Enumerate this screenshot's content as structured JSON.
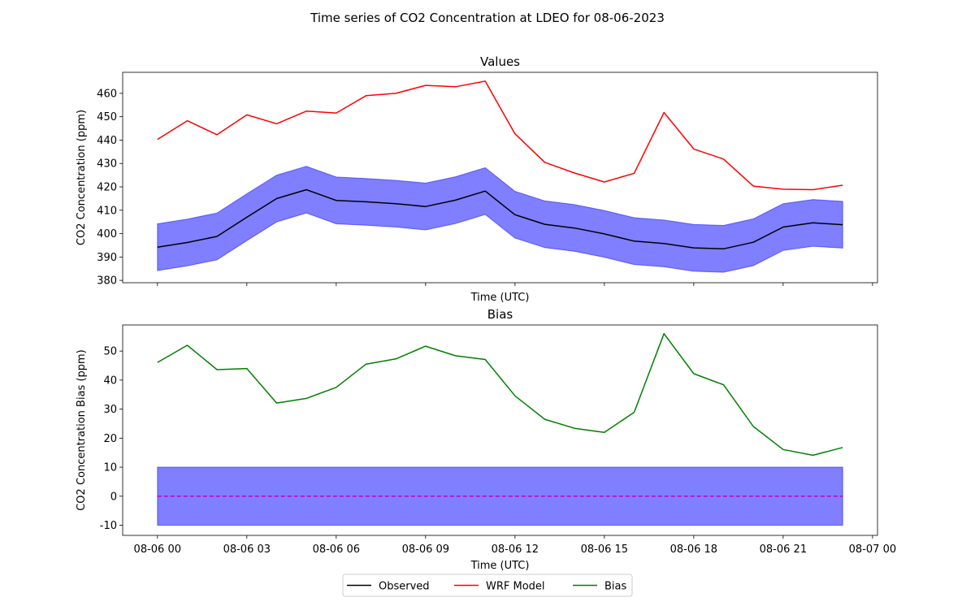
{
  "figure": {
    "suptitle": "Time series of CO2 Concentration at LDEO for 08-06-2023"
  },
  "colors": {
    "observed": "#000000",
    "model": "#ff0000",
    "bias": "#008000",
    "band_fill": "#0000ff",
    "zero_line": "#bf00bf"
  },
  "chart_data": [
    {
      "type": "line",
      "title": "Values",
      "xlabel": "Time (UTC)",
      "ylabel": "CO2 Concentration (ppm)",
      "x": [
        "08-06 00",
        "08-06 01",
        "08-06 02",
        "08-06 03",
        "08-06 04",
        "08-06 05",
        "08-06 06",
        "08-06 07",
        "08-06 08",
        "08-06 09",
        "08-06 10",
        "08-06 11",
        "08-06 12",
        "08-06 13",
        "08-06 14",
        "08-06 15",
        "08-06 16",
        "08-06 17",
        "08-06 18",
        "08-06 19",
        "08-06 20",
        "08-06 21",
        "08-06 22",
        "08-06 23"
      ],
      "xlim": [
        "08-05 22:50",
        "08-07 00:10"
      ],
      "ylim": [
        379,
        469
      ],
      "yticks": [
        380,
        390,
        400,
        410,
        420,
        430,
        440,
        450,
        460
      ],
      "xtick_labels_hidden": true,
      "series": [
        {
          "name": "Observed",
          "values": [
            394.2,
            396.2,
            398.8,
            407.0,
            415.0,
            418.8,
            414.2,
            413.6,
            412.8,
            411.6,
            414.3,
            418.2,
            408.1,
            404.0,
            402.4,
            399.9,
            396.8,
            395.8,
            393.9,
            393.5,
            396.3,
            402.8,
            404.6,
            403.8
          ]
        },
        {
          "name": "WRF Model",
          "values": [
            440.3,
            448.3,
            442.3,
            450.8,
            447.0,
            452.4,
            451.6,
            459.0,
            460.0,
            463.4,
            462.8,
            465.2,
            442.7,
            430.5,
            425.9,
            422.1,
            425.8,
            451.8,
            436.2,
            431.9,
            420.3,
            419.0,
            418.8,
            420.7
          ]
        }
      ],
      "band": {
        "series": "Observed",
        "lower_offset": -10,
        "upper_offset": 10
      }
    },
    {
      "type": "line",
      "title": "Bias",
      "xlabel": "Time (UTC)",
      "ylabel": "CO2 Concentration Bias (ppm)",
      "x": [
        "08-06 00",
        "08-06 01",
        "08-06 02",
        "08-06 03",
        "08-06 04",
        "08-06 05",
        "08-06 06",
        "08-06 07",
        "08-06 08",
        "08-06 09",
        "08-06 10",
        "08-06 11",
        "08-06 12",
        "08-06 13",
        "08-06 14",
        "08-06 15",
        "08-06 16",
        "08-06 17",
        "08-06 18",
        "08-06 19",
        "08-06 20",
        "08-06 21",
        "08-06 22",
        "08-06 23"
      ],
      "xlim": [
        "08-05 22:50",
        "08-07 00:10"
      ],
      "ylim": [
        -13.5,
        59
      ],
      "yticks": [
        -10,
        0,
        10,
        20,
        30,
        40,
        50
      ],
      "xtick_labels": [
        "08-06 00",
        "08-06 03",
        "08-06 06",
        "08-06 09",
        "08-06 12",
        "08-06 15",
        "08-06 18",
        "08-06 21",
        "08-07 00"
      ],
      "series": [
        {
          "name": "Bias",
          "values": [
            46.1,
            52.0,
            43.6,
            44.0,
            32.1,
            33.7,
            37.5,
            45.5,
            47.3,
            51.7,
            48.4,
            47.1,
            34.6,
            26.5,
            23.4,
            22.0,
            28.9,
            56.0,
            42.2,
            38.4,
            24.0,
            16.1,
            14.1,
            16.8
          ]
        }
      ],
      "band": {
        "lower": -10,
        "upper": 10
      },
      "zero_line": 0
    }
  ],
  "legend": {
    "placement": "bottom-center",
    "entries": [
      "Observed",
      "WRF Model",
      "Bias"
    ]
  }
}
